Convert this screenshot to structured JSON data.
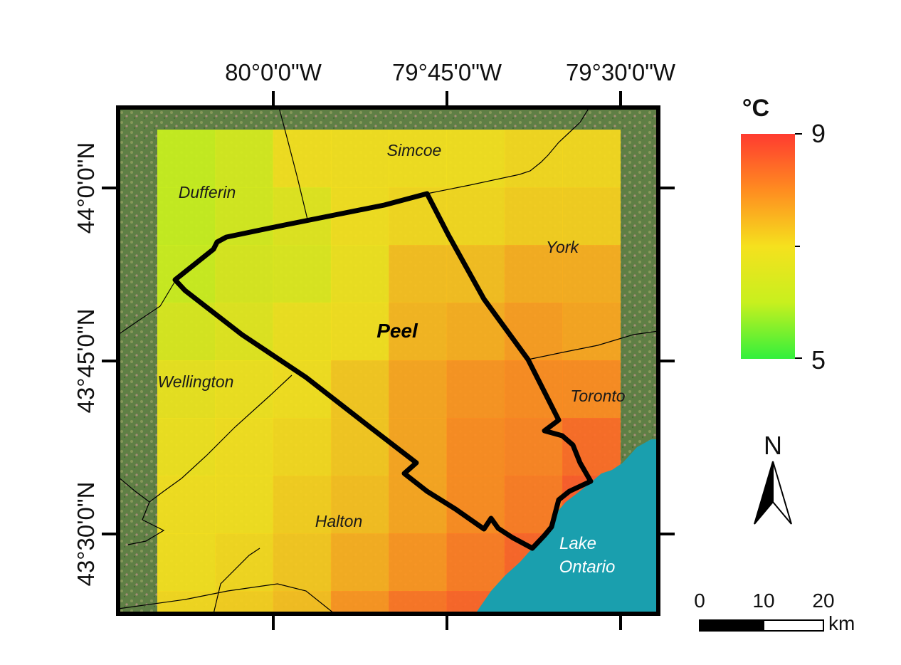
{
  "map": {
    "longitude_ticks": [
      "80°0'0\"W",
      "79°45'0\"W",
      "79°30'0\"W"
    ],
    "latitude_ticks": [
      "44°0'0\"N",
      "43°45'0\"N",
      "43°30'0\"N"
    ],
    "regions": {
      "simcoe": "Simcoe",
      "dufferin": "Dufferin",
      "york": "York",
      "peel": "Peel",
      "wellington": "Wellington",
      "toronto": "Toronto",
      "halton": "Halton"
    },
    "lake": {
      "line1": "Lake",
      "line2": "Ontario"
    },
    "temperature_grid": [
      [
        6.0,
        6.3,
        7.0,
        7.0,
        7.0,
        7.0,
        7.1,
        7.1
      ],
      [
        6.0,
        6.3,
        6.6,
        7.0,
        7.1,
        7.1,
        7.2,
        7.2
      ],
      [
        6.1,
        6.4,
        6.5,
        6.9,
        7.4,
        7.4,
        7.6,
        7.6
      ],
      [
        6.4,
        6.6,
        6.9,
        7.0,
        7.5,
        7.6,
        7.8,
        7.7
      ],
      [
        6.8,
        6.9,
        7.0,
        7.3,
        7.7,
        7.9,
        8.0,
        8.0
      ],
      [
        6.9,
        7.0,
        7.1,
        7.3,
        7.7,
        8.0,
        8.1,
        8.4
      ],
      [
        7.0,
        7.0,
        7.2,
        7.4,
        7.7,
        8.0,
        8.2,
        8.6
      ],
      [
        7.0,
        7.1,
        7.3,
        7.6,
        7.9,
        8.2,
        8.5,
        8.6
      ],
      [
        7.1,
        7.2,
        7.4,
        7.9,
        8.3,
        8.5,
        8.7,
        8.7
      ]
    ]
  },
  "legend": {
    "unit": "°C",
    "max": 9,
    "min": 5,
    "max_label": "9",
    "min_label": "5",
    "colors": [
      "#ff3b30",
      "#ff8c20",
      "#f5e11e",
      "#c8f01e",
      "#32f03c"
    ]
  },
  "north_arrow": {
    "label": "N"
  },
  "scale_bar": {
    "labels": [
      "0",
      "10",
      "20"
    ],
    "unit": "km"
  },
  "colors": {
    "lake": "#1a9fae",
    "frame": "#000000"
  }
}
